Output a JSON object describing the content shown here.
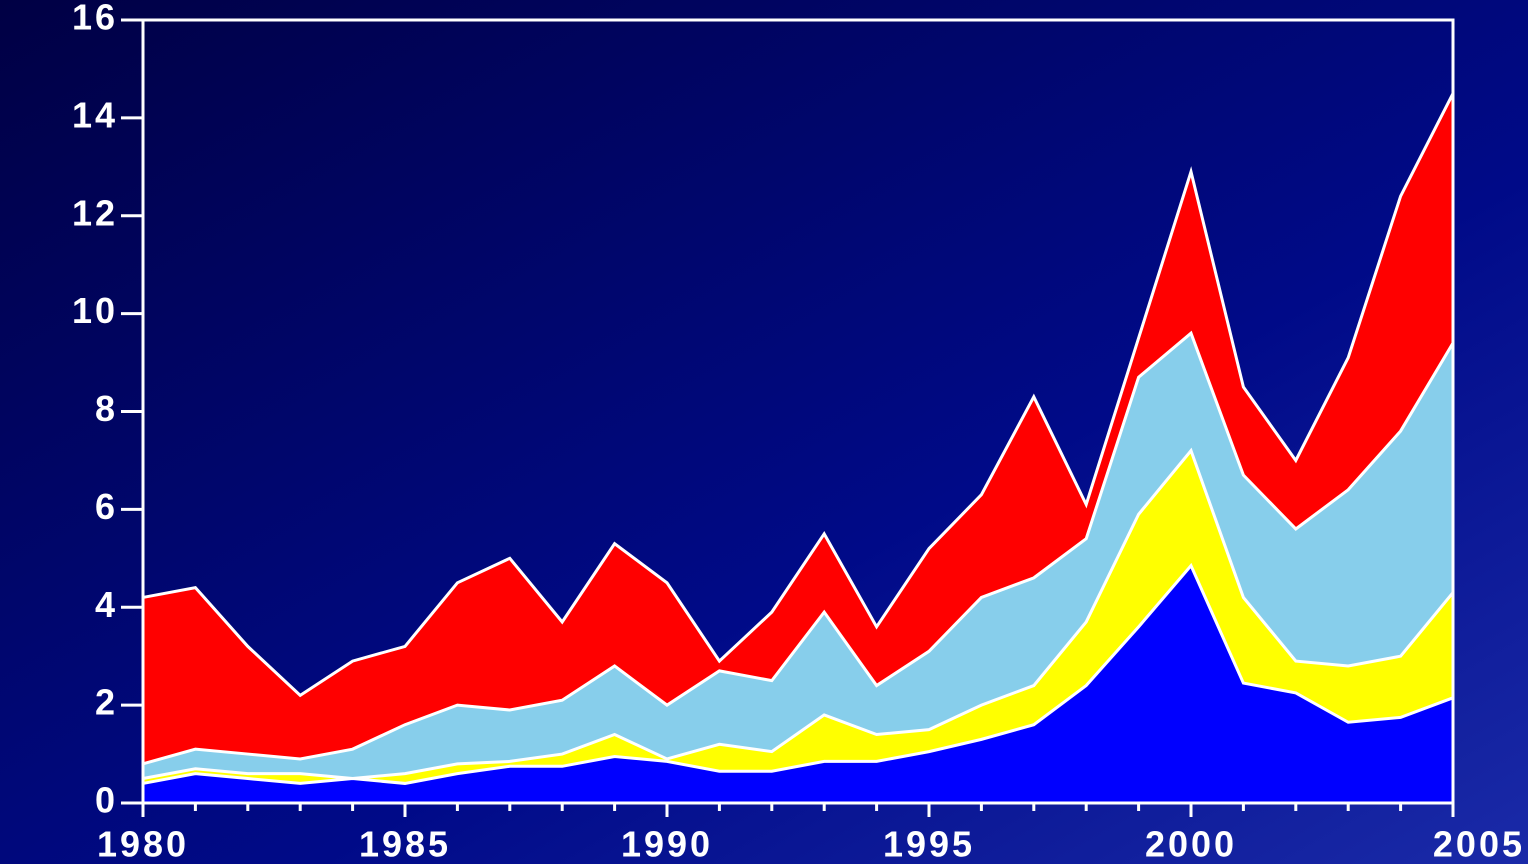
{
  "chart_data": {
    "type": "stacked_area",
    "x": [
      1980,
      1981,
      1982,
      1983,
      1984,
      1985,
      1986,
      1987,
      1988,
      1989,
      1990,
      1991,
      1992,
      1993,
      1994,
      1995,
      1996,
      1997,
      1998,
      1999,
      2000,
      2001,
      2002,
      2003,
      2004,
      2005
    ],
    "series": [
      {
        "color": "#0000ff",
        "values": [
          0.4,
          0.6,
          0.5,
          0.4,
          0.5,
          0.4,
          0.6,
          0.75,
          0.75,
          0.95,
          0.85,
          0.65,
          0.65,
          0.85,
          0.85,
          1.05,
          1.3,
          1.6,
          2.4,
          3.6,
          4.85,
          2.45,
          2.25,
          1.65,
          1.75,
          2.15
        ]
      },
      {
        "color": "#ffff00",
        "values": [
          0.1,
          0.1,
          0.1,
          0.2,
          0,
          0.2,
          0.2,
          0.1,
          0.25,
          0.45,
          0.05,
          0.55,
          0.4,
          0.95,
          0.55,
          0.45,
          0.7,
          0.8,
          1.3,
          2.3,
          2.35,
          1.75,
          0.65,
          1.15,
          1.25,
          2.15
        ]
      },
      {
        "color": "#87ceeb",
        "values": [
          0.3,
          0.4,
          0.4,
          0.3,
          0.6,
          1.0,
          1.2,
          1.05,
          1.1,
          1.4,
          1.1,
          1.5,
          1.45,
          2.1,
          1.0,
          1.6,
          2.2,
          2.2,
          1.7,
          2.8,
          2.4,
          2.5,
          2.7,
          3.6,
          4.6,
          5.1
        ]
      },
      {
        "color": "#ff0000",
        "values": [
          3.4,
          3.3,
          2.2,
          1.3,
          1.8,
          1.6,
          2.5,
          3.1,
          1.6,
          2.5,
          2.5,
          0.2,
          1.4,
          1.6,
          1.2,
          2.1,
          2.1,
          3.7,
          0.7,
          0.8,
          3.3,
          1.8,
          1.4,
          2.7,
          4.8,
          5.1
        ]
      }
    ],
    "xlim": [
      1980,
      2005
    ],
    "xticks": [
      1980,
      1985,
      1990,
      1995,
      2000,
      2005
    ],
    "ylim": [
      0,
      16
    ],
    "yticks": [
      0,
      2,
      4,
      6,
      8,
      10,
      12,
      14,
      16
    ]
  }
}
